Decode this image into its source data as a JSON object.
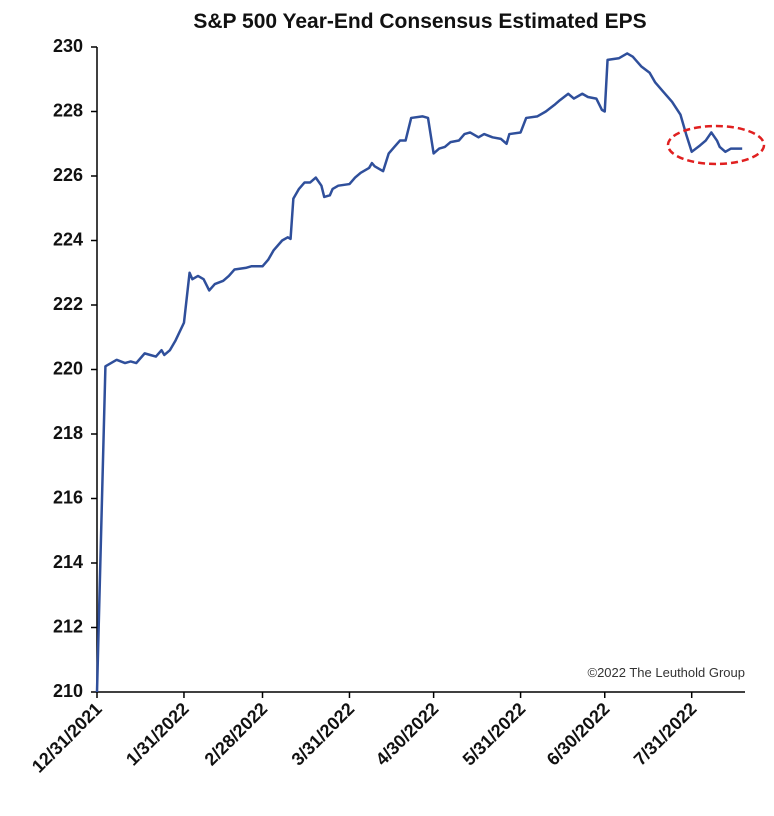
{
  "chart_data": {
    "type": "line",
    "title": "S&P 500 Year-End Consensus Estimated EPS",
    "annotation": "©2022 The Leuthold Group",
    "x": [
      "12/31/2021",
      "1/3/2022",
      "1/5/2022",
      "1/7/2022",
      "1/10/2022",
      "1/12/2022",
      "1/14/2022",
      "1/17/2022",
      "1/19/2022",
      "1/21/2022",
      "1/23/2022",
      "1/24/2022",
      "1/26/2022",
      "1/28/2022",
      "1/31/2022",
      "2/2/2022",
      "2/3/2022",
      "2/5/2022",
      "2/7/2022",
      "2/9/2022",
      "2/11/2022",
      "2/14/2022",
      "2/16/2022",
      "2/18/2022",
      "2/22/2022",
      "2/24/2022",
      "2/28/2022",
      "3/2/2022",
      "3/4/2022",
      "3/7/2022",
      "3/9/2022",
      "3/10/2022",
      "3/11/2022",
      "3/13/2022",
      "3/15/2022",
      "3/17/2022",
      "3/19/2022",
      "3/21/2022",
      "3/22/2022",
      "3/24/2022",
      "3/25/2022",
      "3/27/2022",
      "3/31/2022",
      "4/2/2022",
      "4/4/2022",
      "4/7/2022",
      "4/8/2022",
      "4/9/2022",
      "4/12/2022",
      "4/14/2022",
      "4/16/2022",
      "4/18/2022",
      "4/20/2022",
      "4/22/2022",
      "4/26/2022",
      "4/28/2022",
      "4/30/2022",
      "5/2/2022",
      "5/4/2022",
      "5/6/2022",
      "5/9/2022",
      "5/11/2022",
      "5/13/2022",
      "5/16/2022",
      "5/18/2022",
      "5/21/2022",
      "5/24/2022",
      "5/26/2022",
      "5/27/2022",
      "5/31/2022",
      "6/2/2022",
      "6/6/2022",
      "6/9/2022",
      "6/12/2022",
      "6/14/2022",
      "6/17/2022",
      "6/19/2022",
      "6/22/2022",
      "6/24/2022",
      "6/27/2022",
      "6/29/2022",
      "6/30/2022",
      "7/1/2022",
      "7/5/2022",
      "7/8/2022",
      "7/10/2022",
      "7/13/2022",
      "7/16/2022",
      "7/18/2022",
      "7/21/2022",
      "7/24/2022",
      "7/27/2022",
      "7/29/2022",
      "7/31/2022",
      "8/3/2022",
      "8/5/2022",
      "8/7/2022",
      "8/9/2022",
      "8/10/2022",
      "8/12/2022",
      "8/14/2022",
      "8/18/2022"
    ],
    "series": [
      {
        "name": "S&P 500 Year-End Consensus Estimated EPS",
        "color": "#2f4f9b",
        "values": [
          210,
          220.1,
          220.2,
          220.3,
          220.2,
          220.25,
          220.2,
          220.5,
          220.45,
          220.4,
          220.6,
          220.45,
          220.6,
          220.9,
          221.45,
          223.0,
          222.8,
          222.9,
          222.8,
          222.45,
          222.65,
          222.75,
          222.9,
          223.1,
          223.15,
          223.2,
          223.2,
          223.4,
          223.7,
          224.0,
          224.1,
          224.05,
          225.3,
          225.6,
          225.8,
          225.8,
          225.95,
          225.7,
          225.35,
          225.4,
          225.6,
          225.7,
          225.75,
          225.95,
          226.1,
          226.25,
          226.4,
          226.3,
          226.15,
          226.7,
          226.9,
          227.1,
          227.1,
          227.8,
          227.85,
          227.8,
          226.7,
          226.85,
          226.9,
          227.05,
          227.1,
          227.3,
          227.35,
          227.2,
          227.3,
          227.2,
          227.15,
          227.0,
          227.3,
          227.35,
          227.8,
          227.85,
          228.0,
          228.2,
          228.35,
          228.55,
          228.4,
          228.55,
          228.45,
          228.4,
          228.05,
          228.0,
          229.6,
          229.65,
          229.8,
          229.7,
          229.4,
          229.2,
          228.9,
          228.6,
          228.3,
          227.9,
          227.3,
          226.75,
          226.95,
          227.1,
          227.35,
          227.1,
          226.9,
          226.75,
          226.85,
          226.85
        ]
      }
    ],
    "xlim": [
      "12/31/2021",
      "8/19/2022"
    ],
    "xticks": [
      "12/31/2021",
      "1/31/2022",
      "2/28/2022",
      "3/31/2022",
      "4/30/2022",
      "5/31/2022",
      "6/30/2022",
      "7/31/2022"
    ],
    "ylim": [
      210,
      230
    ],
    "yticks": [
      210,
      212,
      214,
      216,
      218,
      220,
      222,
      224,
      226,
      228,
      230
    ],
    "grid": false
  }
}
